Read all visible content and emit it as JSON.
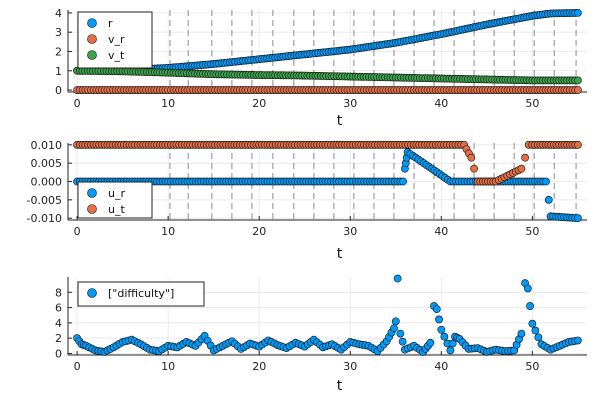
{
  "colors": {
    "series1": "#009af9",
    "series2": "#e26f46",
    "series3": "#3da44d",
    "grid": "#e6e6e6",
    "dashed": "#8a8a8a",
    "frame": "#222222"
  },
  "chart_data": [
    {
      "type": "scatter",
      "title": "",
      "xlabel": "t",
      "ylabel": "",
      "xlim": [
        -1,
        56
      ],
      "ylim": [
        -0.1,
        4.15
      ],
      "xticks": [
        "0",
        "10",
        "20",
        "30",
        "40",
        "50"
      ],
      "yticks": [
        "0",
        "1",
        "2",
        "3",
        "4"
      ],
      "grid": true,
      "legend_position": "top-left",
      "vertical_dashed_lines_x": [
        10.2,
        12.2,
        14.8,
        17.0,
        19.2,
        21.5,
        23.8,
        26.0,
        28.2,
        30.4,
        32.6,
        34.8,
        37.0,
        39.2,
        41.4,
        43.6,
        45.8,
        48.0,
        50.2,
        52.4,
        54.8
      ],
      "series": [
        {
          "name": "r",
          "x": [
            0,
            5,
            10,
            15,
            20,
            25,
            30,
            35,
            40,
            45,
            50,
            52,
            55
          ],
          "y": [
            1.0,
            1.03,
            1.15,
            1.35,
            1.6,
            1.85,
            2.1,
            2.45,
            2.9,
            3.4,
            3.85,
            3.97,
            4.0
          ]
        },
        {
          "name": "v_r",
          "x": [
            0,
            10,
            20,
            30,
            40,
            50,
            55
          ],
          "y": [
            0.0,
            0.0,
            0.0,
            0.0,
            0.0,
            0.0,
            0.0
          ]
        },
        {
          "name": "v_t",
          "x": [
            0,
            5,
            10,
            15,
            20,
            25,
            30,
            35,
            40,
            45,
            50,
            55
          ],
          "y": [
            1.0,
            0.97,
            0.9,
            0.82,
            0.78,
            0.75,
            0.7,
            0.65,
            0.6,
            0.55,
            0.5,
            0.5
          ]
        }
      ]
    },
    {
      "type": "scatter",
      "title": "",
      "xlabel": "t",
      "ylabel": "",
      "xlim": [
        -1,
        56
      ],
      "ylim": [
        -0.0105,
        0.0105
      ],
      "xticks": [
        "0",
        "10",
        "20",
        "30",
        "40",
        "50"
      ],
      "yticks": [
        "-0.010",
        "-0.005",
        "0.000",
        "0.005",
        "0.010"
      ],
      "grid": true,
      "legend_position": "bottom-left",
      "vertical_dashed_lines_x": [
        10.2,
        12.2,
        14.8,
        17.0,
        19.2,
        21.5,
        23.8,
        26.0,
        28.2,
        30.4,
        32.6,
        34.8,
        37.0,
        39.2,
        41.4,
        43.6,
        45.8,
        48.0,
        50.2,
        52.4,
        54.8
      ],
      "series": [
        {
          "name": "u_r",
          "x": [
            0,
            10,
            20,
            30,
            35.8,
            36.0,
            36.1,
            36.2,
            36.3,
            41,
            43.5,
            45,
            50,
            51.5,
            51.8,
            52,
            55
          ],
          "y": [
            0.0,
            0.0,
            0.0,
            0.0,
            0.0,
            0.0035,
            0.005,
            0.0065,
            0.008,
            0.0,
            0.0,
            0.0,
            0.0,
            0.0,
            -0.005,
            -0.0095,
            -0.01
          ]
        },
        {
          "name": "u_t",
          "x": [
            0,
            10,
            20,
            30,
            40,
            42.5,
            43.3,
            43.6,
            44,
            46,
            48.8,
            49.2,
            49.6,
            50,
            55
          ],
          "y": [
            0.01,
            0.01,
            0.01,
            0.01,
            0.01,
            0.01,
            0.0065,
            0.0035,
            0.0,
            0.0,
            0.0035,
            0.0065,
            0.01,
            0.01,
            0.01
          ]
        }
      ]
    },
    {
      "type": "scatter",
      "title": "",
      "xlabel": "t",
      "ylabel": "",
      "xlim": [
        -1,
        56
      ],
      "ylim": [
        -0.2,
        10
      ],
      "xticks": [
        "0",
        "10",
        "20",
        "30",
        "40",
        "50"
      ],
      "yticks": [
        "0",
        "2",
        "4",
        "6",
        "8"
      ],
      "grid": true,
      "legend_position": "top-left",
      "series": [
        {
          "name": "[\"difficulty\"]",
          "x": [
            0,
            0.5,
            1,
            2,
            3,
            4,
            5,
            6,
            7,
            8,
            9,
            10,
            11,
            12,
            13,
            14,
            15,
            16,
            17,
            18,
            19,
            20,
            21,
            22,
            23,
            24,
            25,
            26,
            27,
            28,
            29,
            30,
            31,
            32,
            33,
            34,
            34.8,
            35,
            35.2,
            35.5,
            36,
            37,
            38,
            38.8,
            39.2,
            39.5,
            40,
            41,
            41.5,
            42,
            43,
            44,
            45,
            46,
            47,
            48,
            48.8,
            49.2,
            49.5,
            50,
            51,
            52,
            53,
            54,
            55
          ],
          "y": [
            2.0,
            1.2,
            1.0,
            0.4,
            0.2,
            0.8,
            1.5,
            1.8,
            1.2,
            0.5,
            0.3,
            1.0,
            0.8,
            1.5,
            1.0,
            2.3,
            0.4,
            1.0,
            1.6,
            0.6,
            1.3,
            0.9,
            1.7,
            1.1,
            0.7,
            1.4,
            0.9,
            1.8,
            0.8,
            1.2,
            0.5,
            1.5,
            1.2,
            1.0,
            0.3,
            1.6,
            3.3,
            4.2,
            9.8,
            2.6,
            0.5,
            1.0,
            0.2,
            1.4,
            6.2,
            5.8,
            3.1,
            0.4,
            2.2,
            1.9,
            0.6,
            0.7,
            0.2,
            0.5,
            0.3,
            0.4,
            2.6,
            9.2,
            8.5,
            3.9,
            1.2,
            0.5,
            1.0,
            1.5,
            1.7
          ]
        }
      ]
    }
  ]
}
